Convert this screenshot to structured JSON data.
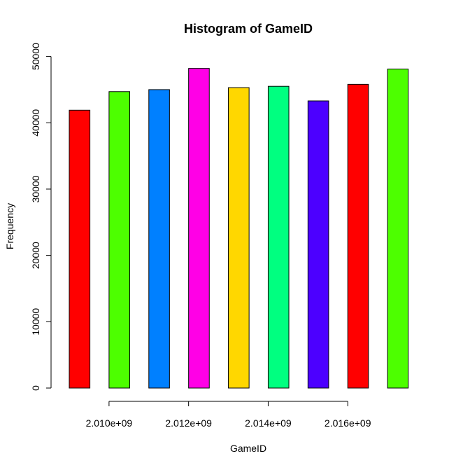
{
  "chart_data": {
    "type": "bar",
    "title": "Histogram of GameID",
    "xlabel": "GameID",
    "ylabel": "Frequency",
    "ylim": [
      0,
      50000
    ],
    "y_ticks": [
      0,
      10000,
      20000,
      30000,
      40000,
      50000
    ],
    "y_tick_labels": [
      "0",
      "10000",
      "20000",
      "30000",
      "40000",
      "50000"
    ],
    "x_range": [
      2009000000,
      2018000000
    ],
    "x_ticks": [
      2010000000,
      2012000000,
      2014000000,
      2016000000
    ],
    "x_tick_labels": [
      "2.010e+09",
      "2.012e+09",
      "2.014e+09",
      "2.016e+09"
    ],
    "bins": [
      {
        "start": 2009000000,
        "end": 2010000000,
        "value": 41900,
        "color": "#FF0000"
      },
      {
        "start": 2010000000,
        "end": 2011000000,
        "value": 44700,
        "color": "#4DFF00"
      },
      {
        "start": 2011000000,
        "end": 2012000000,
        "value": 45000,
        "color": "#0080FF"
      },
      {
        "start": 2012000000,
        "end": 2013000000,
        "value": 48200,
        "color": "#FF00E6"
      },
      {
        "start": 2013000000,
        "end": 2014000000,
        "value": 45300,
        "color": "#FFD700"
      },
      {
        "start": 2014000000,
        "end": 2015000000,
        "value": 45500,
        "color": "#00FF80"
      },
      {
        "start": 2015000000,
        "end": 2016000000,
        "value": 43300,
        "color": "#4C00FF"
      },
      {
        "start": 2016000000,
        "end": 2017000000,
        "value": 45800,
        "color": "#FF0000"
      },
      {
        "start": 2017000000,
        "end": 2018000000,
        "value": 48100,
        "color": "#4DFF00"
      }
    ]
  }
}
